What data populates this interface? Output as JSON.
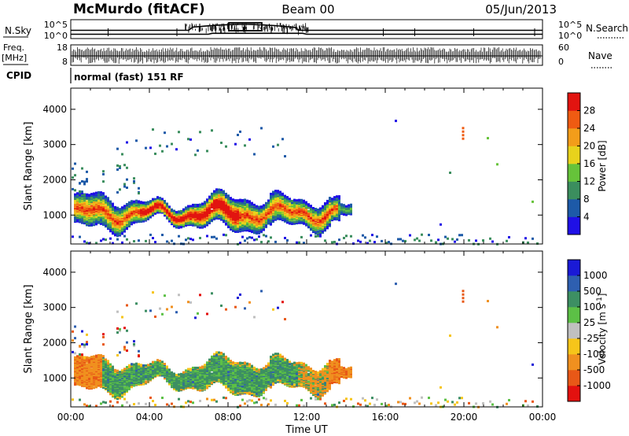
{
  "header": {
    "station": "McMurdo (fitACF)",
    "beam": "Beam 00",
    "date": "05/Jun/2013"
  },
  "meta_panels": {
    "nsky_label": "N.Sky",
    "nsearch_label": "N.Search",
    "nsky_ticks": [
      "10^5",
      "10^0"
    ],
    "nsearch_ticks": [
      "10^5",
      "10^0"
    ],
    "freq_label": "Freq.",
    "freq_unit": "[MHz]",
    "freq_ticks": [
      "18",
      "8"
    ],
    "nave_label": "Nave",
    "nave_ticks": [
      "60",
      "0"
    ],
    "cpid_label": "CPID",
    "cpid_text": "normal (fast) 151 RF"
  },
  "chart_data": [
    {
      "type": "heatmap",
      "panel": "power",
      "ylabel": "Slant Range [km]",
      "xlabel": "Time UT",
      "x_ticks": [
        "00:00",
        "04:00",
        "08:00",
        "12:00",
        "16:00",
        "20:00",
        "00:00"
      ],
      "xlim_hours": [
        0,
        24
      ],
      "y_ticks": [
        1000,
        2000,
        3000,
        4000
      ],
      "ylim": [
        180,
        4600
      ],
      "colorbar": {
        "label": "Power [dB]",
        "ticks": [
          "4",
          "8",
          "12",
          "16",
          "20",
          "24",
          "28"
        ],
        "colors": [
          "#1f10e6",
          "#1d5aa8",
          "#3b8e5e",
          "#66c33a",
          "#e8d21c",
          "#f39d1a",
          "#ef5b12",
          "#e21410"
        ]
      },
      "dominant_echo": {
        "time_range_hours": [
          0.1,
          14.3
        ],
        "range_km_center": 1100,
        "max_power_db": 28
      }
    },
    {
      "type": "heatmap",
      "panel": "velocity",
      "ylabel": "Slant Range [km]",
      "xlabel": "Time UT",
      "x_ticks": [
        "00:00",
        "04:00",
        "08:00",
        "12:00",
        "16:00",
        "20:00",
        "00:00"
      ],
      "xlim_hours": [
        0,
        24
      ],
      "y_ticks": [
        1000,
        2000,
        3000,
        4000
      ],
      "ylim": [
        180,
        4600
      ],
      "colorbar": {
        "label": "Velocity [m s",
        "label_sup": "-1",
        "label_end": "]",
        "ticks": [
          "1000",
          "500",
          "100",
          "25",
          "-25",
          "-100",
          "-500",
          "-1000"
        ],
        "colors": [
          "#1a1ad6",
          "#2e5fb0",
          "#3d8f63",
          "#5cc046",
          "#c0c0c0",
          "#f6c51a",
          "#f0901f",
          "#e85817",
          "#e3110f"
        ]
      }
    }
  ]
}
